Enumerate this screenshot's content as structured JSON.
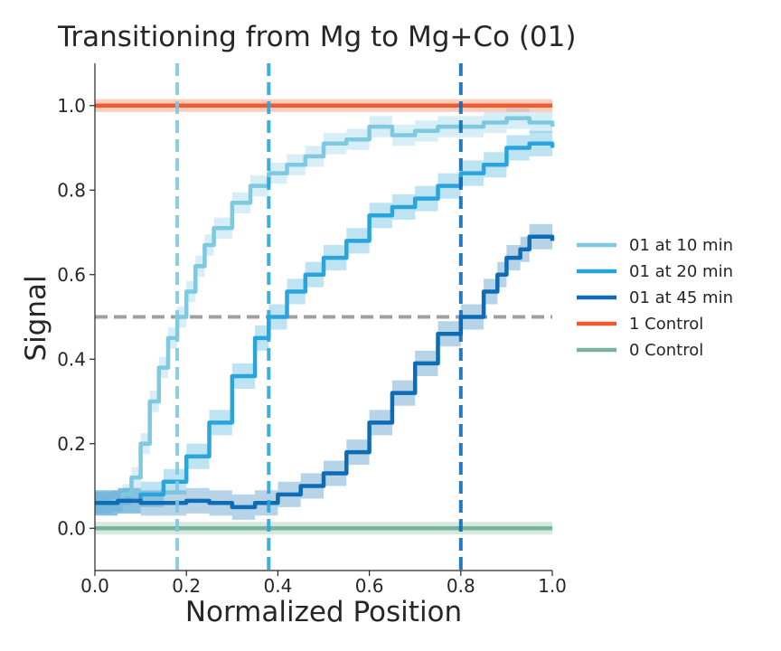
{
  "chart_data": {
    "type": "line",
    "title": "Transitioning from Mg to Mg+Co (01)",
    "xlabel": "Normalized Position",
    "ylabel": "Signal",
    "xlim": [
      0.0,
      1.0
    ],
    "ylim": [
      -0.1,
      1.1
    ],
    "xticks": [
      "0.0",
      "0.2",
      "0.4",
      "0.6",
      "0.8",
      "1.0"
    ],
    "yticks": [
      "0.0",
      "0.2",
      "0.4",
      "0.6",
      "0.8",
      "1.0"
    ],
    "grid": false,
    "legend_position": "right",
    "threshold_line": {
      "y": 0.5,
      "color": "#a0a0a0"
    },
    "series": [
      {
        "name": "01 at 10 min",
        "color": "#7ec8e0",
        "crossing_x": 0.18,
        "x": [
          0.0,
          0.04,
          0.06,
          0.08,
          0.1,
          0.12,
          0.14,
          0.16,
          0.18,
          0.2,
          0.22,
          0.24,
          0.26,
          0.3,
          0.34,
          0.38,
          0.42,
          0.46,
          0.5,
          0.55,
          0.6,
          0.65,
          0.7,
          0.75,
          0.8,
          0.85,
          0.9,
          0.95,
          1.0
        ],
        "values": [
          0.06,
          0.065,
          0.08,
          0.12,
          0.2,
          0.3,
          0.38,
          0.45,
          0.5,
          0.56,
          0.62,
          0.67,
          0.71,
          0.77,
          0.81,
          0.84,
          0.86,
          0.88,
          0.91,
          0.92,
          0.95,
          0.93,
          0.94,
          0.95,
          0.95,
          0.96,
          0.97,
          0.96,
          0.95
        ],
        "band": 0.025
      },
      {
        "name": "01 at 20 min",
        "color": "#29a5dc",
        "crossing_x": 0.38,
        "x": [
          0.0,
          0.05,
          0.1,
          0.15,
          0.2,
          0.25,
          0.3,
          0.35,
          0.38,
          0.42,
          0.46,
          0.5,
          0.55,
          0.6,
          0.65,
          0.7,
          0.75,
          0.8,
          0.85,
          0.9,
          0.95,
          1.0
        ],
        "values": [
          0.06,
          0.065,
          0.08,
          0.11,
          0.17,
          0.25,
          0.36,
          0.45,
          0.5,
          0.56,
          0.6,
          0.64,
          0.68,
          0.74,
          0.76,
          0.78,
          0.81,
          0.84,
          0.86,
          0.9,
          0.91,
          0.9
        ],
        "band": 0.03
      },
      {
        "name": "01 at 45 min",
        "color": "#0e6cb4",
        "crossing_x": 0.8,
        "x": [
          0.0,
          0.05,
          0.1,
          0.15,
          0.2,
          0.25,
          0.3,
          0.35,
          0.4,
          0.45,
          0.5,
          0.55,
          0.6,
          0.65,
          0.7,
          0.75,
          0.8,
          0.85,
          0.88,
          0.9,
          0.93,
          0.95,
          1.0
        ],
        "values": [
          0.06,
          0.065,
          0.06,
          0.06,
          0.065,
          0.06,
          0.05,
          0.06,
          0.08,
          0.1,
          0.13,
          0.18,
          0.25,
          0.32,
          0.39,
          0.46,
          0.5,
          0.56,
          0.6,
          0.64,
          0.66,
          0.69,
          0.68
        ],
        "band": 0.03
      },
      {
        "name": "1 Control",
        "color": "#f15a2c",
        "x": [
          0.0,
          1.0
        ],
        "values": [
          1.0,
          1.0
        ],
        "band": 0.015
      },
      {
        "name": "0 Control",
        "color": "#79b39a",
        "x": [
          0.0,
          1.0
        ],
        "values": [
          0.0,
          0.0
        ],
        "band": 0.015
      }
    ]
  }
}
